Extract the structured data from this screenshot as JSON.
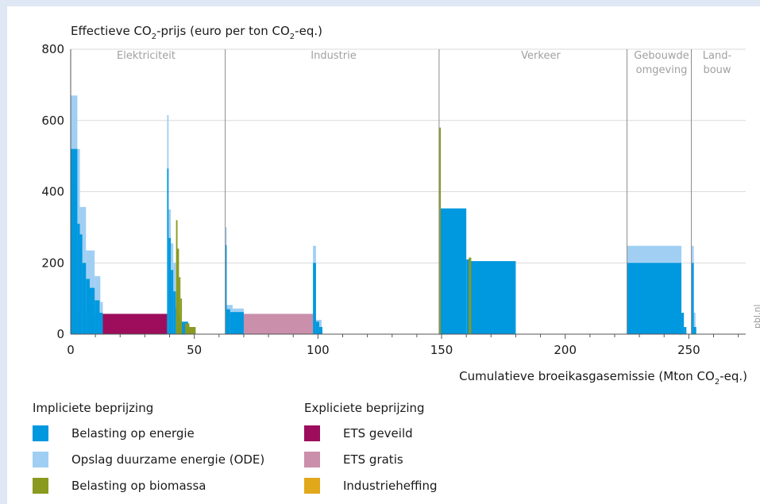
{
  "chart_data": {
    "type": "bar",
    "title_prefix": "Effectieve CO",
    "title_sub": "2",
    "title_mid": "-prijs (euro per ton CO",
    "title_sub2": "2",
    "title_suffix": "-eq.)",
    "xlabel_prefix": "Cumulatieve broeikasgasemissie (Mton CO",
    "xlabel_sub": "2",
    "xlabel_suffix": "-eq.)",
    "watermark": "pbl.nl",
    "xlim": [
      0,
      273
    ],
    "ylim": [
      0,
      800
    ],
    "x_ticks": [
      0,
      50,
      100,
      150,
      200,
      250
    ],
    "x_tick_labels": [
      "0",
      "50",
      "100",
      "150",
      "200",
      "250"
    ],
    "y_ticks": [
      0,
      200,
      400,
      600,
      800
    ],
    "y_tick_labels": [
      "0",
      "200",
      "400",
      "600",
      "800"
    ],
    "grid": true,
    "sectors": [
      {
        "label": "Elektriciteit",
        "start": 0,
        "end": 62.5
      },
      {
        "label": "Industrie",
        "start": 62.5,
        "end": 149
      },
      {
        "label": "Verkeer",
        "start": 149,
        "end": 225
      },
      {
        "label": "Gebouwde omgeving",
        "start": 225,
        "end": 251
      },
      {
        "label": "Land- bouw",
        "start": 251,
        "end": 273
      }
    ],
    "sector_labels": {
      "elektriciteit": "Elektriciteit",
      "industrie": "Industrie",
      "verkeer": "Verkeer",
      "gebouwde_1": "Gebouwde",
      "gebouwde_2": "omgeving",
      "landbouw_1": "Land-",
      "landbouw_2": "bouw"
    },
    "legend": {
      "implicit_title": "Impliciete beprijzing",
      "explicit_title": "Expliciete beprijzing",
      "belasting_energie": "Belasting op energie",
      "ode": "Opslag duurzame energie (ODE)",
      "biomassa": "Belasting op biomassa",
      "ets_geveild": "ETS geveild",
      "ets_gratis": "ETS gratis",
      "industrieheffing": "Industrieheffing"
    },
    "series": [
      {
        "key": "ets_geveild",
        "name": "ETS geveild",
        "color": "#9d0d5c",
        "bars": [
          {
            "x0": 0,
            "x1": 39,
            "y0": 0,
            "y1": 57
          }
        ]
      },
      {
        "key": "ets_gratis",
        "name": "ETS gratis",
        "color": "#c98fab",
        "bars": [
          {
            "x0": 62.5,
            "x1": 98,
            "y0": 0,
            "y1": 57
          }
        ]
      },
      {
        "key": "ode",
        "name": "Opslag duurzame energie (ODE)",
        "color": "#a0cff3",
        "bars": [
          {
            "x0": 0,
            "x1": 2.7,
            "y0": 0,
            "y1": 670
          },
          {
            "x0": 2.7,
            "x1": 3.7,
            "y0": 0,
            "y1": 520
          },
          {
            "x0": 3.7,
            "x1": 6.2,
            "y0": 0,
            "y1": 357
          },
          {
            "x0": 6.2,
            "x1": 9.7,
            "y0": 0,
            "y1": 235
          },
          {
            "x0": 9.7,
            "x1": 12,
            "y0": 0,
            "y1": 163
          },
          {
            "x0": 12,
            "x1": 13,
            "y0": 0,
            "y1": 90
          },
          {
            "x0": 39,
            "x1": 39.6,
            "y0": 0,
            "y1": 615
          },
          {
            "x0": 39.6,
            "x1": 40.5,
            "y0": 0,
            "y1": 350
          },
          {
            "x0": 40.5,
            "x1": 41.5,
            "y0": 0,
            "y1": 255
          },
          {
            "x0": 41.5,
            "x1": 42.5,
            "y0": 0,
            "y1": 200
          },
          {
            "x0": 62.5,
            "x1": 63.1,
            "y0": 0,
            "y1": 300
          },
          {
            "x0": 63.1,
            "x1": 65.5,
            "y0": 0,
            "y1": 82
          },
          {
            "x0": 65.5,
            "x1": 70,
            "y0": 0,
            "y1": 72
          },
          {
            "x0": 98,
            "x1": 99.2,
            "y0": 0,
            "y1": 248
          },
          {
            "x0": 99.2,
            "x1": 101.5,
            "y0": 0,
            "y1": 40
          },
          {
            "x0": 225,
            "x1": 247,
            "y0": 0,
            "y1": 248
          },
          {
            "x0": 251.2,
            "x1": 252,
            "y0": 0,
            "y1": 248
          },
          {
            "x0": 252,
            "x1": 252.7,
            "y0": 0,
            "y1": 60
          }
        ]
      },
      {
        "key": "belasting_energie",
        "name": "Belasting op energie",
        "color": "#0098de",
        "bars": [
          {
            "x0": 0,
            "x1": 2.7,
            "y0": 0,
            "y1": 520
          },
          {
            "x0": 2.7,
            "x1": 3.7,
            "y0": 0,
            "y1": 310
          },
          {
            "x0": 3.7,
            "x1": 4.7,
            "y0": 0,
            "y1": 280
          },
          {
            "x0": 4.7,
            "x1": 6.2,
            "y0": 0,
            "y1": 200
          },
          {
            "x0": 6.2,
            "x1": 7.7,
            "y0": 0,
            "y1": 155
          },
          {
            "x0": 7.7,
            "x1": 9.7,
            "y0": 0,
            "y1": 130
          },
          {
            "x0": 9.7,
            "x1": 11.7,
            "y0": 0,
            "y1": 95
          },
          {
            "x0": 11.7,
            "x1": 13,
            "y0": 0,
            "y1": 60
          },
          {
            "x0": 39,
            "x1": 39.6,
            "y0": 0,
            "y1": 465
          },
          {
            "x0": 39.6,
            "x1": 40.5,
            "y0": 0,
            "y1": 270
          },
          {
            "x0": 40.5,
            "x1": 41.5,
            "y0": 0,
            "y1": 180
          },
          {
            "x0": 41.5,
            "x1": 42.5,
            "y0": 0,
            "y1": 120
          },
          {
            "x0": 42.5,
            "x1": 43.5,
            "y0": 0,
            "y1": 75
          },
          {
            "x0": 43.5,
            "x1": 44.2,
            "y0": 0,
            "y1": 55
          },
          {
            "x0": 44.2,
            "x1": 47.5,
            "y0": 0,
            "y1": 35
          },
          {
            "x0": 47.5,
            "x1": 50.5,
            "y0": 0,
            "y1": 20
          },
          {
            "x0": 62.5,
            "x1": 63.1,
            "y0": 0,
            "y1": 250
          },
          {
            "x0": 63.1,
            "x1": 64.5,
            "y0": 0,
            "y1": 70
          },
          {
            "x0": 64.5,
            "x1": 70,
            "y0": 0,
            "y1": 62
          },
          {
            "x0": 98,
            "x1": 99.2,
            "y0": 0,
            "y1": 200
          },
          {
            "x0": 99.2,
            "x1": 100.5,
            "y0": 0,
            "y1": 35
          },
          {
            "x0": 100.5,
            "x1": 101.8,
            "y0": 0,
            "y1": 20
          },
          {
            "x0": 149,
            "x1": 160,
            "y0": 0,
            "y1": 353
          },
          {
            "x0": 160,
            "x1": 161.5,
            "y0": 0,
            "y1": 210
          },
          {
            "x0": 161.5,
            "x1": 180,
            "y0": 0,
            "y1": 205
          },
          {
            "x0": 225,
            "x1": 247,
            "y0": 0,
            "y1": 200
          },
          {
            "x0": 247,
            "x1": 248,
            "y0": 0,
            "y1": 60
          },
          {
            "x0": 248,
            "x1": 249,
            "y0": 0,
            "y1": 20
          },
          {
            "x0": 251.2,
            "x1": 252,
            "y0": 0,
            "y1": 200
          },
          {
            "x0": 252,
            "x1": 253,
            "y0": 0,
            "y1": 20
          }
        ]
      },
      {
        "key": "biomassa",
        "name": "Belasting op biomassa",
        "color": "#8a9a1f",
        "bars": [
          {
            "x0": 42.6,
            "x1": 43.2,
            "y0": 0,
            "y1": 320
          },
          {
            "x0": 43.2,
            "x1": 43.8,
            "y0": 0,
            "y1": 240
          },
          {
            "x0": 43.8,
            "x1": 44.4,
            "y0": 0,
            "y1": 160
          },
          {
            "x0": 44.4,
            "x1": 45,
            "y0": 0,
            "y1": 100
          },
          {
            "x0": 46.3,
            "x1": 48,
            "y0": 0,
            "y1": 30
          },
          {
            "x0": 48,
            "x1": 50.5,
            "y0": 0,
            "y1": 20
          },
          {
            "x0": 149,
            "x1": 149.7,
            "y0": 0,
            "y1": 580
          },
          {
            "x0": 161,
            "x1": 162,
            "y0": 0,
            "y1": 215
          }
        ]
      }
    ]
  }
}
